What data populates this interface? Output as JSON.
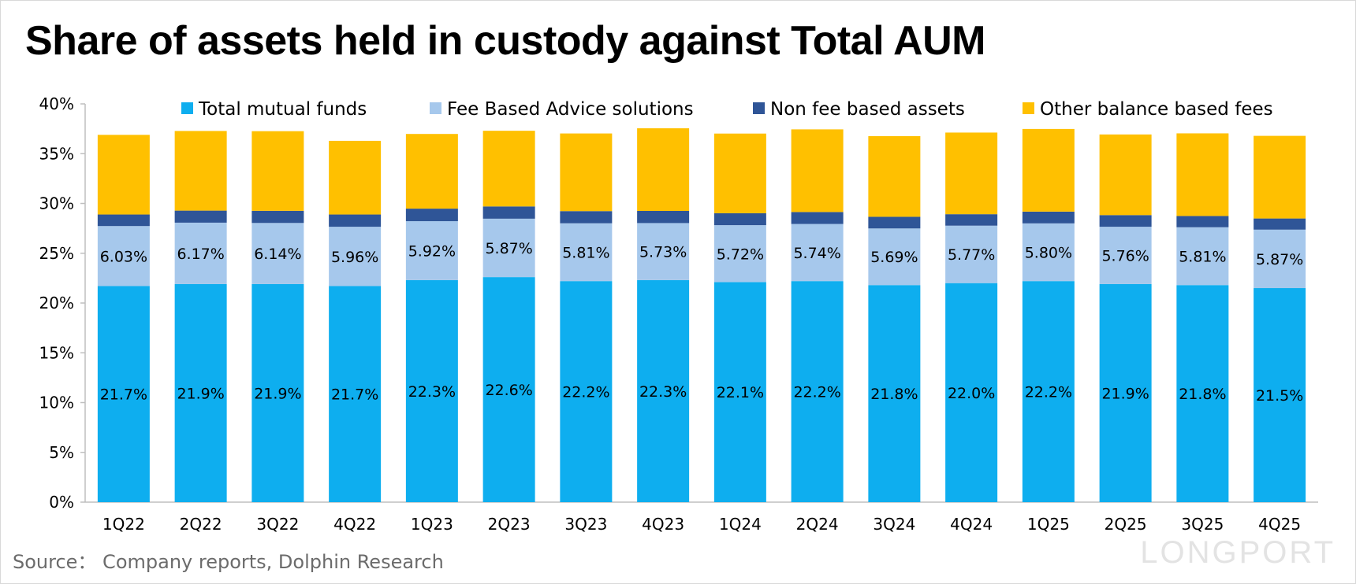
{
  "title": "Share of assets held in custody against Total AUM",
  "source": "Source： Company reports, Dolphin Research",
  "watermark": "LONGPORT",
  "chart_data": {
    "type": "bar",
    "stacked": true,
    "title": "Share of assets held in custody against Total AUM",
    "xlabel": "",
    "ylabel": "",
    "ylim": [
      0,
      40
    ],
    "yticks": [
      "0%",
      "5%",
      "10%",
      "15%",
      "20%",
      "25%",
      "30%",
      "35%",
      "40%"
    ],
    "grid": false,
    "legend_position": "top",
    "categories": [
      "1Q22",
      "2Q22",
      "3Q22",
      "4Q22",
      "1Q23",
      "2Q23",
      "3Q23",
      "4Q23",
      "1Q24",
      "2Q24",
      "3Q24",
      "4Q24",
      "1Q25",
      "2Q25",
      "3Q25",
      "4Q25"
    ],
    "series": [
      {
        "name": "Total mutual funds",
        "color": "#0eaeef",
        "values": [
          21.7,
          21.9,
          21.9,
          21.7,
          22.3,
          22.6,
          22.2,
          22.3,
          22.1,
          22.2,
          21.8,
          22.0,
          22.2,
          21.9,
          21.8,
          21.5
        ],
        "labels": [
          "21.7%",
          "21.9%",
          "21.9%",
          "21.7%",
          "22.3%",
          "22.6%",
          "22.2%",
          "22.3%",
          "22.1%",
          "22.2%",
          "21.8%",
          "22.0%",
          "22.2%",
          "21.9%",
          "21.8%",
          "21.5%"
        ]
      },
      {
        "name": "Fee Based Advice solutions",
        "color": "#a6c8ec",
        "values": [
          6.03,
          6.17,
          6.14,
          5.96,
          5.92,
          5.87,
          5.81,
          5.73,
          5.72,
          5.74,
          5.69,
          5.77,
          5.8,
          5.76,
          5.81,
          5.87
        ],
        "labels": [
          "6.03%",
          "6.17%",
          "6.14%",
          "5.96%",
          "5.92%",
          "5.87%",
          "5.81%",
          "5.73%",
          "5.72%",
          "5.74%",
          "5.69%",
          "5.77%",
          "5.80%",
          "5.76%",
          "5.81%",
          "5.87%"
        ]
      },
      {
        "name": "Non fee based assets",
        "color": "#2f5597",
        "values": [
          1.16,
          1.21,
          1.22,
          1.23,
          1.26,
          1.23,
          1.22,
          1.22,
          1.2,
          1.2,
          1.17,
          1.15,
          1.18,
          1.17,
          1.13,
          1.12
        ],
        "labels": [
          "1.16%",
          "1.21%",
          "1.22%",
          "1.23%",
          "1.26%",
          "1.23%",
          "1.22%",
          "1.22%",
          "1.20%",
          "1.20%",
          "1.17%",
          "1.15%",
          "1.18%",
          "1.17%",
          "1.13%",
          "1.12%"
        ]
      },
      {
        "name": "Other balance based fees",
        "color": "#ffc000",
        "values": [
          8.0,
          8.0,
          8.0,
          7.4,
          7.5,
          7.6,
          7.8,
          8.3,
          8.0,
          8.3,
          8.1,
          8.2,
          8.3,
          8.1,
          8.3,
          8.3
        ],
        "labels": []
      }
    ]
  }
}
